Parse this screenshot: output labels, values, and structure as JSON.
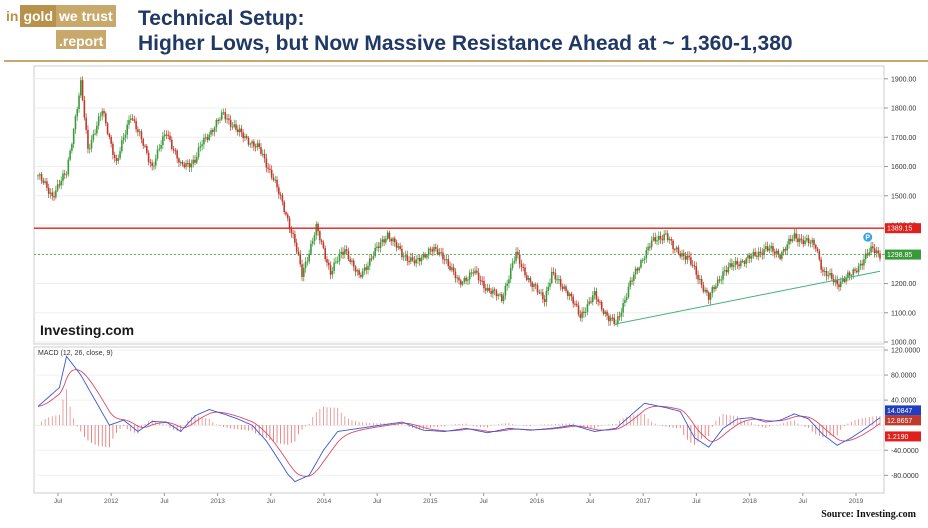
{
  "logo": {
    "in": "in",
    "gold": "gold",
    "we_trust": "we trust",
    "report": ".report"
  },
  "header": {
    "title_line1": "Technical Setup:",
    "title_line2": "Higher Lows, but Now Massive Resistance Ahead at ~ 1,360-1,380"
  },
  "source": "Source: Investing.com",
  "colors": {
    "up": "#3a9a3a",
    "down": "#c0392b",
    "resistance": "#e0201c",
    "support": "#3fb27f",
    "macd": "#3b57d6",
    "signal": "#d94a6a",
    "title": "#1f3864",
    "gold": "#b8914a"
  },
  "chart_data": [
    {
      "type": "candlestick",
      "brand": "Investing.com",
      "x_ticks": [
        "Jul",
        "2012",
        "Jul",
        "2013",
        "Jul",
        "2014",
        "Jul",
        "2015",
        "Jul",
        "2016",
        "Jul",
        "2017",
        "Jul",
        "2018",
        "Jul",
        "2019"
      ],
      "y_ticks": [
        "1900.00",
        "1800.00",
        "1700.00",
        "1600.00",
        "1500.00",
        "1400.00",
        "1300.00",
        "1200.00",
        "1100.00",
        "1000.00"
      ],
      "ylim": [
        1000,
        1930
      ],
      "price_path": [
        [
          0,
          1570
        ],
        [
          2,
          1500
        ],
        [
          4,
          1580
        ],
        [
          6,
          1880
        ],
        [
          7,
          1660
        ],
        [
          9,
          1790
        ],
        [
          11,
          1610
        ],
        [
          13,
          1780
        ],
        [
          16,
          1600
        ],
        [
          18,
          1720
        ],
        [
          20,
          1600
        ],
        [
          22,
          1620
        ],
        [
          23,
          1680
        ],
        [
          26,
          1780
        ],
        [
          28,
          1720
        ],
        [
          31,
          1660
        ],
        [
          33,
          1560
        ],
        [
          35,
          1420
        ],
        [
          36,
          1340
        ],
        [
          37,
          1230
        ],
        [
          39,
          1390
        ],
        [
          41,
          1240
        ],
        [
          43,
          1320
        ],
        [
          45,
          1220
        ],
        [
          47,
          1300
        ],
        [
          49,
          1370
        ],
        [
          51,
          1300
        ],
        [
          53,
          1270
        ],
        [
          55,
          1320
        ],
        [
          57,
          1290
        ],
        [
          59,
          1200
        ],
        [
          61,
          1240
        ],
        [
          63,
          1180
        ],
        [
          65,
          1150
        ],
        [
          67,
          1300
        ],
        [
          69,
          1200
        ],
        [
          71,
          1150
        ],
        [
          72,
          1230
        ],
        [
          74,
          1180
        ],
        [
          76,
          1090
        ],
        [
          78,
          1160
        ],
        [
          80,
          1080
        ],
        [
          81,
          1060
        ],
        [
          83,
          1200
        ],
        [
          85,
          1300
        ],
        [
          86,
          1340
        ],
        [
          88,
          1370
        ],
        [
          89,
          1320
        ],
        [
          91,
          1290
        ],
        [
          93,
          1200
        ],
        [
          94,
          1150
        ],
        [
          96,
          1240
        ],
        [
          98,
          1270
        ],
        [
          100,
          1290
        ],
        [
          102,
          1320
        ],
        [
          104,
          1300
        ],
        [
          106,
          1360
        ],
        [
          108,
          1340
        ],
        [
          109,
          1330
        ],
        [
          110,
          1240
        ],
        [
          112,
          1200
        ],
        [
          114,
          1230
        ],
        [
          116,
          1290
        ],
        [
          117,
          1320
        ],
        [
          118,
          1300
        ]
      ],
      "resistance": {
        "y": 1389.15,
        "label": "1389.15"
      },
      "current": {
        "y": 1298.85,
        "label": "1298.85"
      },
      "support_line": {
        "x": [
          81,
          118
        ],
        "y": [
          1062,
          1242
        ]
      },
      "event_marker": "P"
    },
    {
      "type": "line",
      "title": "MACD (12, 26, close, 9)",
      "y_ticks": [
        "120.0000",
        "80.0000",
        "40.0000",
        "-40.0000",
        "-80.0000"
      ],
      "ylim": [
        -105,
        120
      ],
      "macd_path": [
        [
          0,
          30
        ],
        [
          3,
          60
        ],
        [
          4,
          110
        ],
        [
          6,
          80
        ],
        [
          8,
          40
        ],
        [
          10,
          0
        ],
        [
          12,
          8
        ],
        [
          14,
          -10
        ],
        [
          16,
          6
        ],
        [
          18,
          5
        ],
        [
          20,
          -10
        ],
        [
          22,
          15
        ],
        [
          24,
          25
        ],
        [
          26,
          18
        ],
        [
          28,
          10
        ],
        [
          30,
          0
        ],
        [
          32,
          -25
        ],
        [
          34,
          -60
        ],
        [
          35,
          -78
        ],
        [
          36,
          -90
        ],
        [
          38,
          -80
        ],
        [
          40,
          -40
        ],
        [
          42,
          -10
        ],
        [
          45,
          -5
        ],
        [
          48,
          0
        ],
        [
          51,
          5
        ],
        [
          54,
          -8
        ],
        [
          57,
          -10
        ],
        [
          60,
          -5
        ],
        [
          63,
          -12
        ],
        [
          66,
          -5
        ],
        [
          69,
          -8
        ],
        [
          72,
          -5
        ],
        [
          75,
          0
        ],
        [
          78,
          -10
        ],
        [
          81,
          -5
        ],
        [
          83,
          15
        ],
        [
          85,
          35
        ],
        [
          88,
          28
        ],
        [
          90,
          22
        ],
        [
          92,
          -20
        ],
        [
          94,
          -35
        ],
        [
          96,
          -5
        ],
        [
          98,
          10
        ],
        [
          100,
          12
        ],
        [
          102,
          5
        ],
        [
          104,
          8
        ],
        [
          106,
          18
        ],
        [
          108,
          10
        ],
        [
          110,
          -15
        ],
        [
          112,
          -32
        ],
        [
          114,
          -20
        ],
        [
          116,
          -5
        ],
        [
          118,
          12
        ]
      ],
      "labels": {
        "macd": "14.0847",
        "signal": "12.8657",
        "histogram": "1.2190"
      }
    }
  ]
}
